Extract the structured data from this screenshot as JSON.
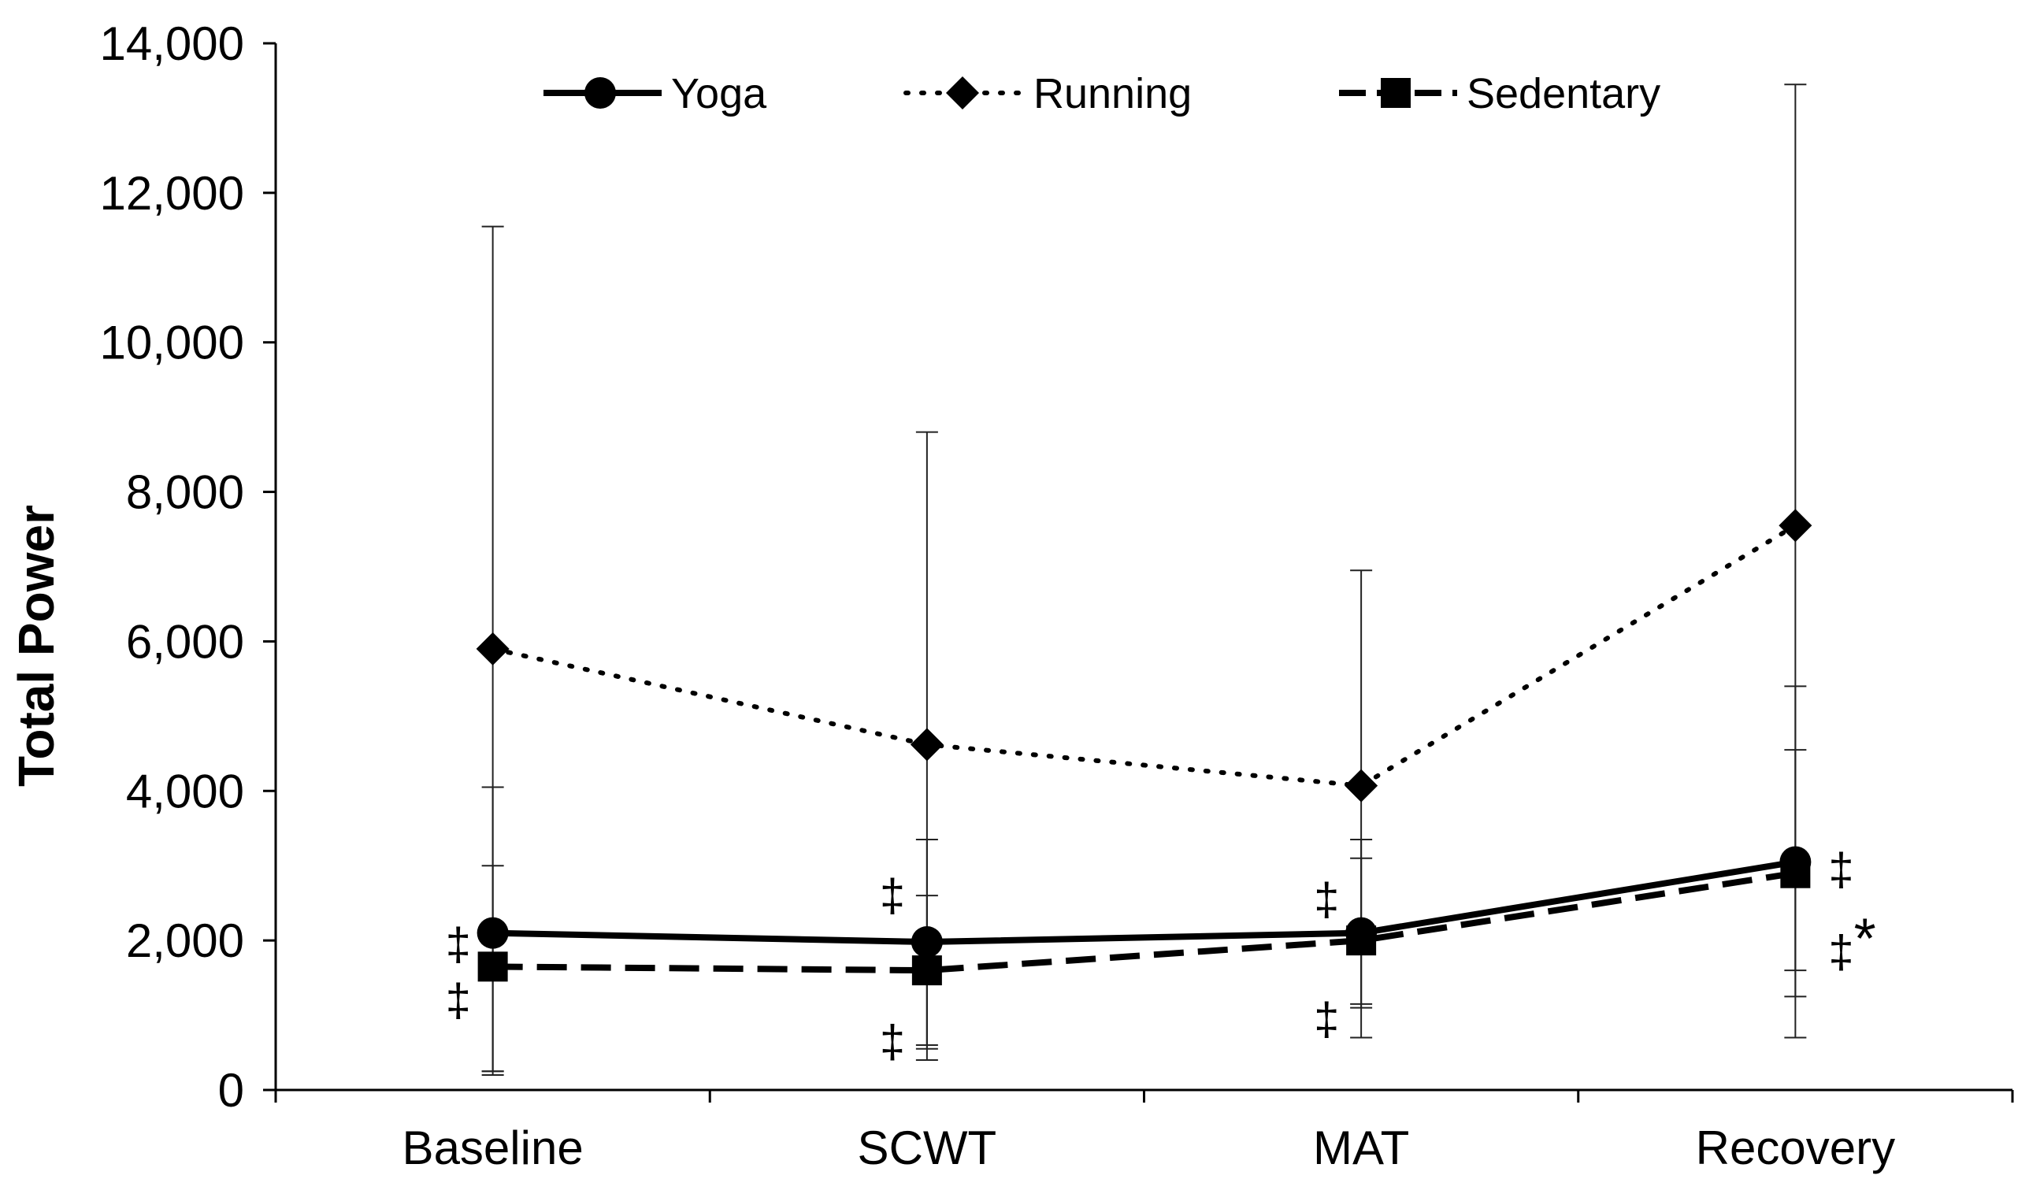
{
  "chart_data": {
    "type": "line",
    "title": "",
    "xlabel": "",
    "ylabel": "Total Power",
    "ylim": [
      0,
      14000
    ],
    "yticks": [
      0,
      2000,
      4000,
      6000,
      8000,
      10000,
      12000,
      14000
    ],
    "ytick_labels": [
      "0",
      "2,000",
      "4,000",
      "6,000",
      "8,000",
      "10,000",
      "12,000",
      "14,000"
    ],
    "categories": [
      "Baseline",
      "SCWT",
      "MAT",
      "Recovery"
    ],
    "legend_position": "top-center",
    "series": [
      {
        "name": "Yoga",
        "line_style": "solid",
        "marker": "circle",
        "values": [
          2100,
          1980,
          2100,
          3050
        ],
        "error_upper": [
          3000,
          2600,
          3100,
          4550
        ],
        "error_lower": [
          250,
          600,
          1100,
          1250
        ]
      },
      {
        "name": "Running",
        "line_style": "dotted",
        "marker": "diamond",
        "values": [
          5900,
          4620,
          4070,
          7550
        ],
        "error_upper": [
          11550,
          8800,
          6950,
          13450
        ],
        "error_lower": [
          200,
          400,
          700,
          700
        ]
      },
      {
        "name": "Sedentary",
        "line_style": "dashed",
        "marker": "square",
        "values": [
          1650,
          1600,
          2000,
          2900
        ],
        "error_upper": [
          4050,
          3350,
          3350,
          5400
        ],
        "error_lower": [
          250,
          550,
          1150,
          1600
        ]
      }
    ],
    "annotations": [
      {
        "category": "Baseline",
        "y": 1950,
        "side": "left",
        "text": "‡"
      },
      {
        "category": "Baseline",
        "y": 1200,
        "side": "left",
        "text": "‡"
      },
      {
        "category": "SCWT",
        "y": 2600,
        "side": "left",
        "text": "‡"
      },
      {
        "category": "SCWT",
        "y": 650,
        "side": "left",
        "text": "‡"
      },
      {
        "category": "MAT",
        "y": 2550,
        "side": "left",
        "text": "‡"
      },
      {
        "category": "MAT",
        "y": 950,
        "side": "left",
        "text": "‡"
      },
      {
        "category": "Recovery",
        "y": 2950,
        "side": "right",
        "text": "‡"
      },
      {
        "category": "Recovery",
        "y": 1850,
        "side": "right",
        "text": "‡*"
      }
    ]
  }
}
